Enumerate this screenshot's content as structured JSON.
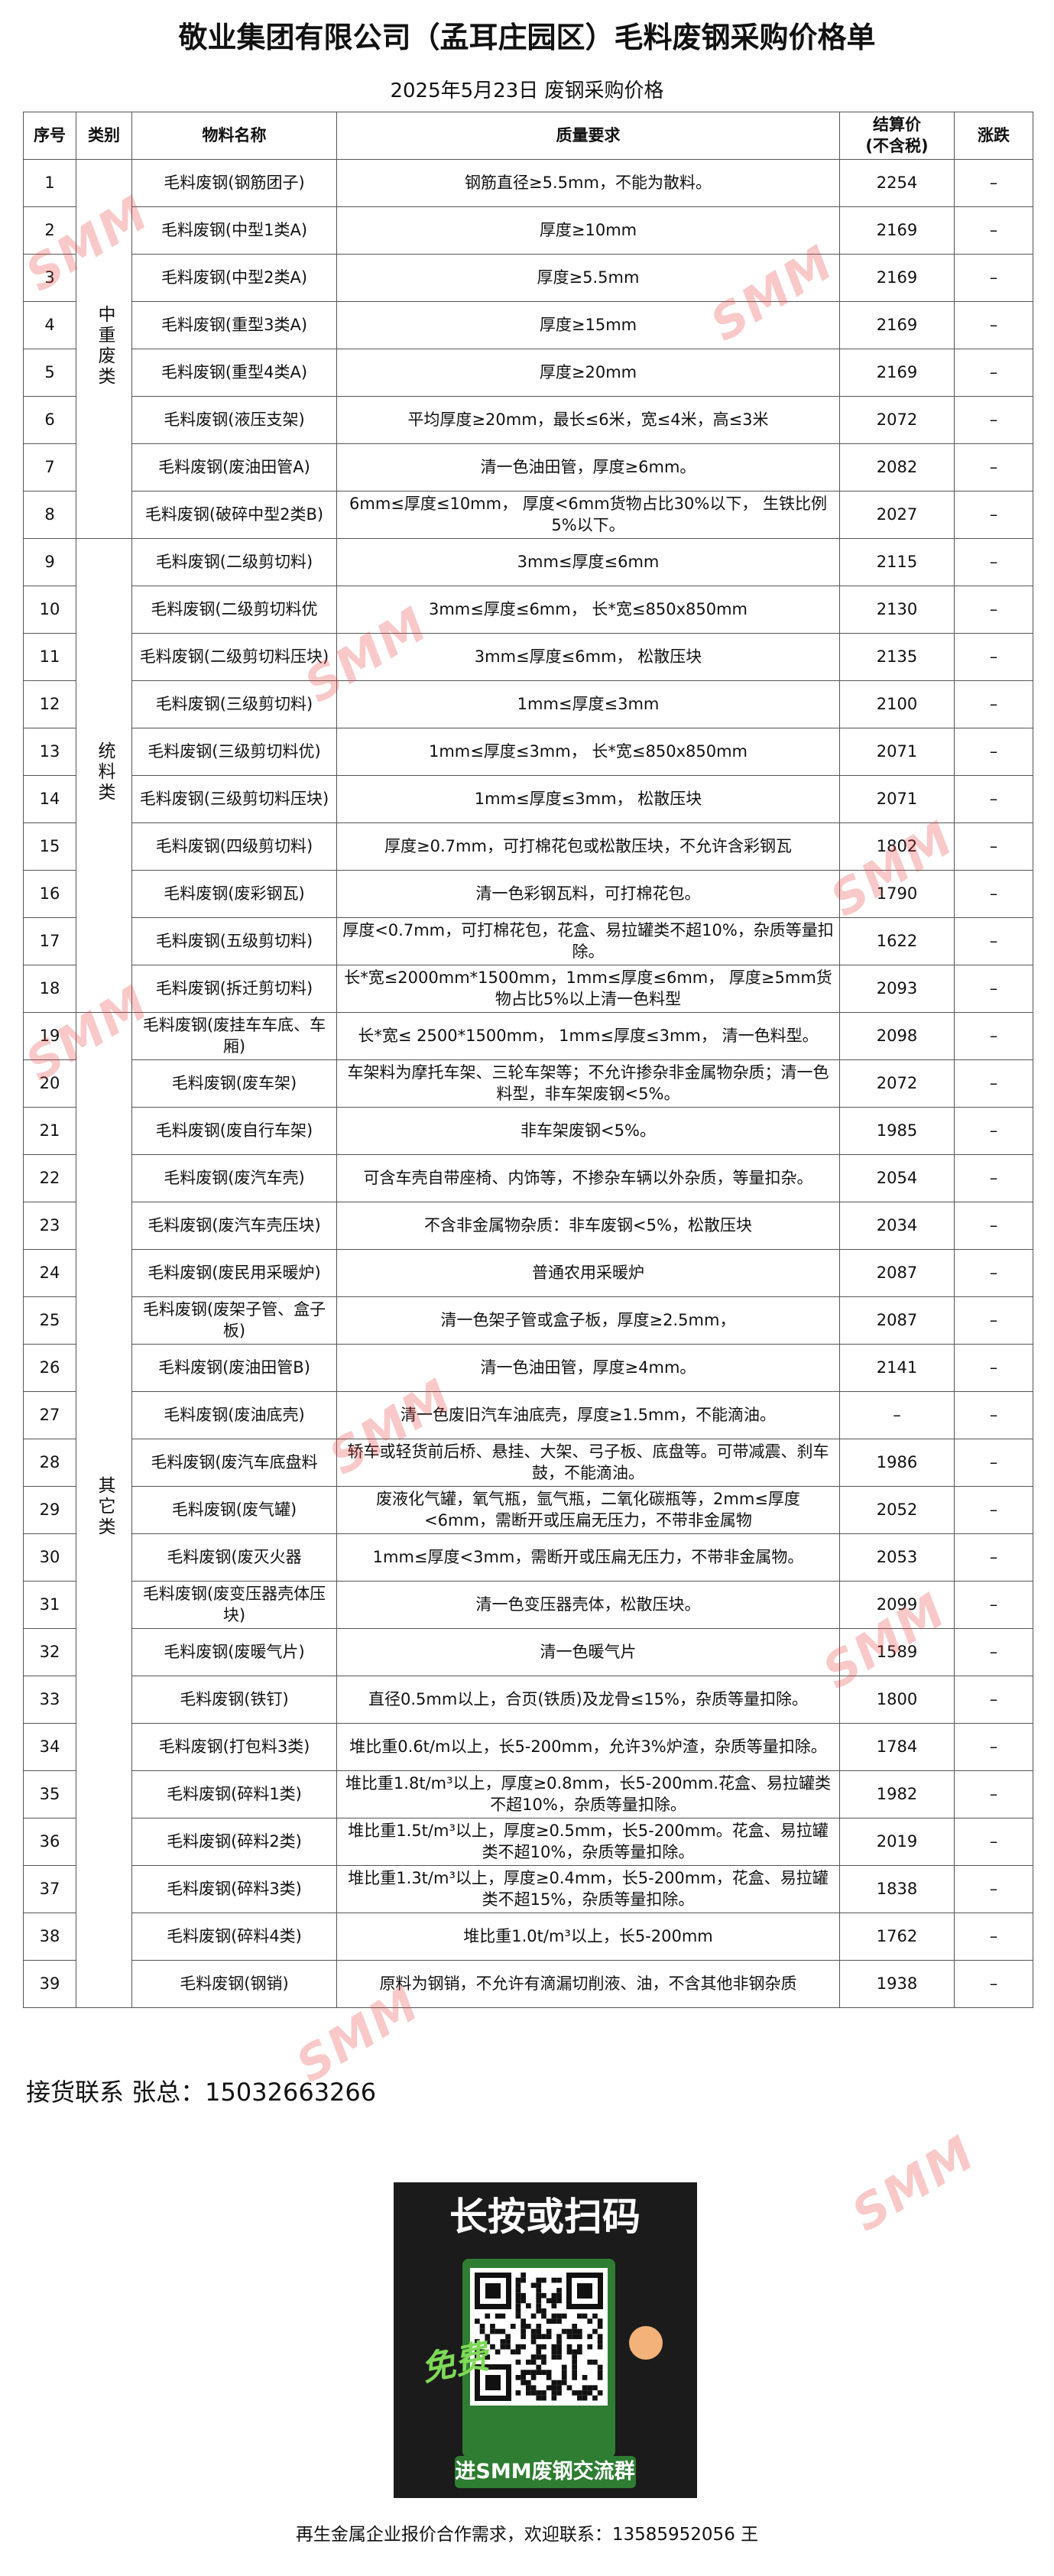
{
  "header": {
    "title": "敬业集团有限公司（孟耳庄园区）毛料废钢采购价格单",
    "subtitle": "2025年5月23日   废钢采购价格"
  },
  "table": {
    "columns": [
      "序号",
      "类别",
      "物料名称",
      "质量要求",
      "结算价\n(不含税)",
      "涨跌"
    ],
    "groups": [
      {
        "label": "中重废类",
        "rows": [
          [
            1,
            "毛料废钢(钢筋团子)",
            "钢筋直径≥5.5mm，不能为散料。",
            2254,
            "–"
          ],
          [
            2,
            "毛料废钢(中型1类A)",
            "厚度≥10mm",
            2169,
            "–"
          ],
          [
            3,
            "毛料废钢(中型2类A)",
            "厚度≥5.5mm",
            2169,
            "–"
          ],
          [
            4,
            "毛料废钢(重型3类A)",
            "厚度≥15mm",
            2169,
            "–"
          ],
          [
            5,
            "毛料废钢(重型4类A)",
            "厚度≥20mm",
            2169,
            "–"
          ],
          [
            6,
            "毛料废钢(液压支架)",
            "平均厚度≥20mm，最长≤6米，宽≤4米，高≤3米",
            2072,
            "–"
          ],
          [
            7,
            "毛料废钢(废油田管A)",
            "清一色油田管，厚度≥6mm。",
            2082,
            "–"
          ],
          [
            8,
            "毛料废钢(破碎中型2类B)",
            "6mm≤厚度≤10mm， 厚度<6mm货物占比30%以下， 生铁比例5%以下。",
            2027,
            "–"
          ]
        ]
      },
      {
        "label": "统料类",
        "rows": [
          [
            9,
            "毛料废钢(二级剪切料)",
            "3mm≤厚度≤6mm",
            2115,
            "–"
          ],
          [
            10,
            "毛料废钢(二级剪切料优",
            "3mm≤厚度≤6mm， 长*宽≤850x850mm",
            2130,
            "–"
          ],
          [
            11,
            "毛料废钢(二级剪切料压块)",
            "3mm≤厚度≤6mm， 松散压块",
            2135,
            "–"
          ],
          [
            12,
            "毛料废钢(三级剪切料)",
            "1mm≤厚度≤3mm",
            2100,
            "–"
          ],
          [
            13,
            "毛料废钢(三级剪切料优)",
            "1mm≤厚度≤3mm， 长*宽≤850x850mm",
            2071,
            "–"
          ],
          [
            14,
            "毛料废钢(三级剪切料压块)",
            "1mm≤厚度≤3mm， 松散压块",
            2071,
            "–"
          ],
          [
            15,
            "毛料废钢(四级剪切料)",
            "厚度≥0.7mm，可打棉花包或松散压块，不允许含彩钢瓦",
            1802,
            "–"
          ],
          [
            16,
            "毛料废钢(废彩钢瓦)",
            "清一色彩钢瓦料，可打棉花包。",
            1790,
            "–"
          ],
          [
            17,
            "毛料废钢(五级剪切料)",
            "厚度<0.7mm，可打棉花包，花盒、易拉罐类不超10%，杂质等量扣除。",
            1622,
            "–"
          ],
          [
            18,
            "毛料废钢(拆迁剪切料)",
            "长*宽≤2000mm*1500mm，1mm≤厚度≤6mm， 厚度≥5mm货物占比5%以上清一色料型",
            2093,
            "–"
          ]
        ]
      },
      {
        "label": "其它类",
        "rows": [
          [
            19,
            "毛料废钢(废挂车车底、车厢)",
            "长*宽≤ 2500*1500mm， 1mm≤厚度≤3mm， 清一色料型。",
            2098,
            "–"
          ],
          [
            20,
            "毛料废钢(废车架)",
            "车架料为摩托车架、三轮车架等；不允许掺杂非金属物杂质；清一色料型，非车架废钢<5%。",
            2072,
            "–"
          ],
          [
            21,
            "毛料废钢(废自行车架)",
            "非车架废钢<5%。",
            1985,
            "–"
          ],
          [
            22,
            "毛料废钢(废汽车壳)",
            "可含车壳自带座椅、内饰等，不掺杂车辆以外杂质，等量扣杂。",
            2054,
            "–"
          ],
          [
            23,
            "毛料废钢(废汽车壳压块)",
            "不含非金属物杂质：非车废钢<5%，松散压块",
            2034,
            "–"
          ],
          [
            24,
            "毛料废钢(废民用采暖炉)",
            "普通农用采暖炉",
            2087,
            "–"
          ],
          [
            25,
            "毛料废钢(废架子管、盒子板)",
            "清一色架子管或盒子板，厚度≥2.5mm，",
            2087,
            "–"
          ],
          [
            26,
            "毛料废钢(废油田管B)",
            "清一色油田管，厚度≥4mm。",
            2141,
            "–"
          ],
          [
            27,
            "毛料废钢(废油底壳)",
            "清一色废旧汽车油底壳，厚度≥1.5mm，不能滴油。",
            "–",
            "–"
          ],
          [
            28,
            "毛料废钢(废汽车底盘料",
            "轿车或轻货前后桥、悬挂、大架、弓子板、底盘等。可带减震、刹车鼓，不能滴油。",
            1986,
            "–"
          ],
          [
            29,
            "毛料废钢(废气罐)",
            "废液化气罐，氧气瓶，氩气瓶，二氧化碳瓶等，2mm≤厚度<6mm，需断开或压扁无压力，不带非金属物",
            2052,
            "–"
          ],
          [
            30,
            "毛料废钢(废灭火器",
            "1mm≤厚度<3mm，需断开或压扁无压力，不带非金属物。",
            2053,
            "–"
          ],
          [
            31,
            "毛料废钢(废变压器壳体压块)",
            "清一色变压器壳体，松散压块。",
            2099,
            "–"
          ],
          [
            32,
            "毛料废钢(废暖气片)",
            "清一色暖气片",
            1589,
            "–"
          ],
          [
            33,
            "毛料废钢(铁钉)",
            "直径0.5mm以上，合页(铁质)及龙骨≤15%，杂质等量扣除。",
            1800,
            "–"
          ],
          [
            34,
            "毛料废钢(打包料3类)",
            "堆比重0.6t/m以上，长5-200mm，允许3%炉渣，杂质等量扣除。",
            1784,
            "–"
          ],
          [
            35,
            "毛料废钢(碎料1类)",
            "堆比重1.8t/m³以上，厚度≥0.8mm，长5-200mm.花盒、易拉罐类不超10%，杂质等量扣除。",
            1982,
            "–"
          ],
          [
            36,
            "毛料废钢(碎料2类)",
            "堆比重1.5t/m³以上，厚度≥0.5mm，长5-200mm。花盒、易拉罐类不超10%，杂质等量扣除。",
            2019,
            "–"
          ],
          [
            37,
            "毛料废钢(碎料3类)",
            "堆比重1.3t/m³以上，厚度≥0.4mm，长5-200mm，花盒、易拉罐类不超15%，杂质等量扣除。",
            1838,
            "–"
          ],
          [
            38,
            "毛料废钢(碎料4类)",
            "堆比重1.0t/m³以上，长5-200mm",
            1762,
            "–"
          ],
          [
            39,
            "毛料废钢(钢销)",
            "原料为钢销，不允许有滴漏切削液、油，不含其他非钢杂质",
            1938,
            "–"
          ]
        ]
      }
    ]
  },
  "contact": "接货联系 张总：15032663266",
  "qr_card": {
    "heading": "长按或扫码",
    "badge": "免费",
    "caption": "进SMM废钢交流群"
  },
  "note": "再生金属企业报价合作需求，欢迎联系：13585952056 王",
  "watermark": "SMM"
}
